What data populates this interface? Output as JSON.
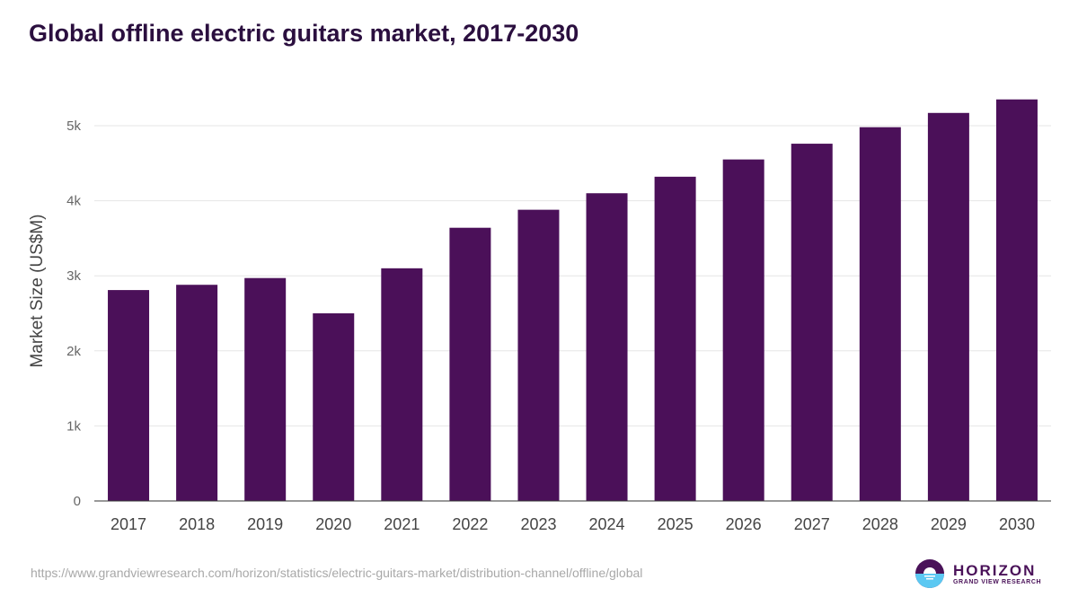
{
  "title": "Global offline electric guitars market, 2017-2030",
  "source": "https://www.grandviewresearch.com/horizon/statistics/electric-guitars-market/distribution-channel/offline/global",
  "logo": {
    "name": "HORIZON",
    "sub": "GRAND VIEW RESEARCH"
  },
  "colors": {
    "bar": "#4b1059",
    "title": "#2b0f3f"
  },
  "chart_data": {
    "type": "bar",
    "title": "Global offline electric guitars market, 2017-2030",
    "xlabel": "",
    "ylabel": "Market Size (US$M)",
    "categories": [
      "2017",
      "2018",
      "2019",
      "2020",
      "2021",
      "2022",
      "2023",
      "2024",
      "2025",
      "2026",
      "2027",
      "2028",
      "2029",
      "2030"
    ],
    "values": [
      2810,
      2880,
      2970,
      2500,
      3100,
      3640,
      3880,
      4100,
      4320,
      4550,
      4760,
      4980,
      5170,
      5350
    ],
    "ylim": [
      0,
      5000
    ],
    "yticks": [
      0,
      1000,
      2000,
      3000,
      4000,
      5000
    ],
    "ytick_labels": [
      "0",
      "1k",
      "2k",
      "3k",
      "4k",
      "5k"
    ],
    "grid": true,
    "legend": "none"
  }
}
